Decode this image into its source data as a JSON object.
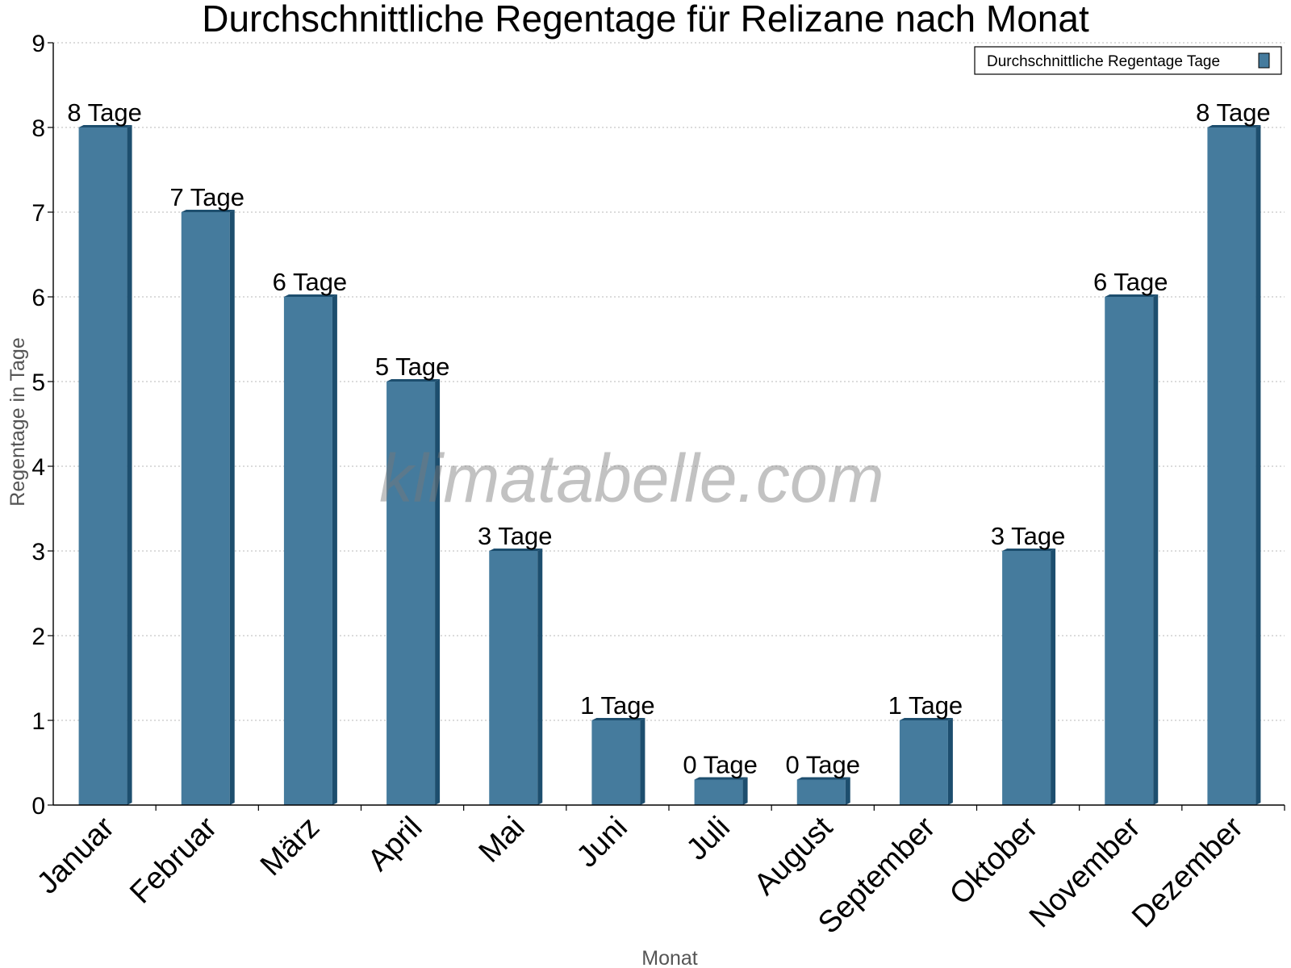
{
  "chart_data": {
    "type": "bar",
    "title": "Durchschnittliche Regentage für Relizane nach Monat",
    "xlabel": "Monat",
    "ylabel": "Regentage in Tage",
    "categories": [
      "Januar",
      "Februar",
      "März",
      "April",
      "Mai",
      "Juni",
      "Juli",
      "August",
      "September",
      "Oktober",
      "November",
      "Dezember"
    ],
    "series": [
      {
        "name": "Durchschnittliche Regentage Tage",
        "values": [
          8,
          7,
          6,
          5,
          3,
          1,
          0.3,
          0.3,
          1,
          3,
          6,
          8
        ],
        "labels": [
          "8 Tage",
          "7 Tage",
          "6 Tage",
          "5 Tage",
          "3 Tage",
          "1 Tage",
          "0 Tage",
          "0 Tage",
          "1 Tage",
          "3 Tage",
          "6 Tage",
          "8 Tage"
        ]
      }
    ],
    "ylim": [
      0,
      9
    ],
    "yticks": [
      "0",
      "1",
      "2",
      "3",
      "4",
      "5",
      "6",
      "7",
      "8",
      "9"
    ],
    "grid": true,
    "legend_position": "top-right",
    "colors": {
      "bar": "#457b9d",
      "bar_side": "#1d4e6e",
      "grid": "#c8c8c8"
    },
    "watermark": "klimatabelle.com"
  }
}
